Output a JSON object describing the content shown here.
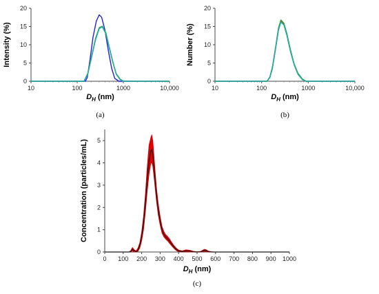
{
  "chart_data": [
    {
      "type": "line",
      "panel": "a",
      "caption": "(a)",
      "ylabel": "Intensity (%)",
      "xlabel_main": "D",
      "xlabel_sub": "H",
      "xlabel_unit": " (nm)",
      "xscale": "log",
      "xlim": [
        10,
        10000
      ],
      "ylim": [
        0,
        20
      ],
      "xticks": [
        10,
        100,
        1000,
        10000
      ],
      "xtick_labels": [
        "10",
        "100",
        "1000",
        "10,000"
      ],
      "yticks": [
        0,
        5,
        10,
        15,
        20
      ],
      "grid": false,
      "series": [
        {
          "color": "#2020e0",
          "x": [
            10,
            150,
            165,
            190,
            220,
            260,
            300,
            340,
            400,
            480,
            560,
            650,
            800,
            10000
          ],
          "y": [
            0,
            0,
            1,
            6,
            12,
            16.5,
            18.2,
            17.5,
            14,
            8,
            3.5,
            0.8,
            0,
            0
          ]
        },
        {
          "color": "#e03030",
          "x": [
            10,
            140,
            170,
            200,
            250,
            300,
            350,
            420,
            500,
            600,
            700,
            850,
            1000,
            10000
          ],
          "y": [
            0,
            0,
            2,
            6,
            11.5,
            14.5,
            15,
            13,
            9,
            5,
            2,
            0.5,
            0,
            0
          ]
        },
        {
          "color": "#30a030",
          "x": [
            10,
            140,
            170,
            200,
            250,
            300,
            350,
            420,
            500,
            600,
            700,
            850,
            1000,
            10000
          ],
          "y": [
            0,
            0,
            2.2,
            6.3,
            11.8,
            14.7,
            15.1,
            13.2,
            9.2,
            5.1,
            2.1,
            0.6,
            0,
            0
          ]
        },
        {
          "color": "#20b0b0",
          "x": [
            10,
            140,
            170,
            200,
            250,
            300,
            350,
            420,
            500,
            600,
            700,
            850,
            1000,
            10000
          ],
          "y": [
            0,
            0,
            1.9,
            6,
            11.4,
            14.4,
            14.9,
            12.9,
            8.9,
            4.9,
            1.9,
            0.4,
            0,
            0
          ]
        }
      ]
    },
    {
      "type": "line",
      "panel": "b",
      "caption": "(b)",
      "ylabel": "Number (%)",
      "xlabel_main": "D",
      "xlabel_sub": "H",
      "xlabel_unit": " (nm)",
      "xscale": "log",
      "xlim": [
        10,
        10000
      ],
      "ylim": [
        0,
        20
      ],
      "xticks": [
        10,
        100,
        1000,
        10000
      ],
      "xtick_labels": [
        "10",
        "100",
        "1000",
        "10,000"
      ],
      "yticks": [
        0,
        5,
        10,
        15,
        20
      ],
      "grid": false,
      "series": [
        {
          "color": "#2020e0",
          "x": [
            10,
            130,
            150,
            170,
            200,
            230,
            260,
            300,
            350,
            420,
            500,
            600,
            750,
            900,
            10000
          ],
          "y": [
            0,
            0,
            1,
            3.5,
            9,
            14,
            16.3,
            15.5,
            12.5,
            8,
            4.5,
            2,
            0.5,
            0,
            0
          ]
        },
        {
          "color": "#e03030",
          "x": [
            10,
            130,
            150,
            170,
            200,
            230,
            260,
            300,
            350,
            420,
            500,
            600,
            750,
            900,
            10000
          ],
          "y": [
            0,
            0,
            1.1,
            3.7,
            9.2,
            14.3,
            16.5,
            15.7,
            12.7,
            8.2,
            4.6,
            2.1,
            0.5,
            0,
            0
          ]
        },
        {
          "color": "#30a030",
          "x": [
            10,
            130,
            150,
            170,
            200,
            230,
            260,
            300,
            350,
            420,
            500,
            600,
            750,
            900,
            10000
          ],
          "y": [
            0,
            0,
            1.2,
            3.9,
            9.5,
            14.6,
            16.8,
            15.9,
            12.9,
            8.4,
            4.7,
            2.2,
            0.6,
            0,
            0
          ]
        },
        {
          "color": "#20b0b0",
          "x": [
            10,
            130,
            150,
            170,
            200,
            230,
            260,
            300,
            350,
            420,
            500,
            600,
            750,
            900,
            10000
          ],
          "y": [
            0,
            0,
            1.0,
            3.6,
            9.1,
            14.1,
            16.2,
            15.4,
            12.4,
            7.9,
            4.4,
            1.9,
            0.4,
            0,
            0
          ]
        }
      ]
    },
    {
      "type": "area",
      "panel": "c",
      "caption": "(c)",
      "ylabel": "Concentration (particles/mL)",
      "xlabel_main": "D",
      "xlabel_sub": "H",
      "xlabel_unit": " (nm)",
      "xscale": "linear",
      "xlim": [
        0,
        1000
      ],
      "ylim": [
        0,
        5.5
      ],
      "xticks": [
        0,
        100,
        200,
        300,
        400,
        500,
        600,
        700,
        800,
        900,
        1000
      ],
      "xtick_labels": [
        "0",
        "100",
        "200",
        "300",
        "400",
        "500",
        "600",
        "700",
        "800",
        "900",
        "1000"
      ],
      "yticks": [
        0,
        1,
        2,
        3,
        4,
        5
      ],
      "grid": false,
      "mean": {
        "color": "#1a1a1a",
        "x": [
          0,
          130,
          140,
          150,
          160,
          170,
          180,
          190,
          200,
          210,
          220,
          230,
          240,
          250,
          255,
          260,
          265,
          270,
          280,
          290,
          300,
          310,
          320,
          330,
          340,
          350,
          360,
          370,
          380,
          390,
          400,
          420,
          440,
          460,
          480,
          500,
          520,
          540,
          550,
          560,
          580,
          600,
          1000
        ],
        "y": [
          0,
          0,
          0.02,
          0.12,
          0.05,
          0.02,
          0.1,
          0.3,
          0.7,
          1.3,
          2.2,
          3.2,
          4.1,
          4.55,
          4.6,
          4.4,
          4.0,
          3.5,
          2.6,
          1.9,
          1.4,
          1.0,
          0.8,
          0.68,
          0.6,
          0.5,
          0.38,
          0.27,
          0.18,
          0.1,
          0.05,
          0.02,
          0.05,
          0.04,
          0.01,
          0,
          0.01,
          0.08,
          0.06,
          0.02,
          0,
          0,
          0
        ]
      },
      "band": {
        "color": "#e00000",
        "upper": [
          0,
          0,
          0.05,
          0.2,
          0.1,
          0.05,
          0.18,
          0.42,
          0.9,
          1.6,
          2.6,
          3.8,
          4.8,
          5.15,
          5.25,
          5.0,
          4.5,
          3.9,
          2.9,
          2.15,
          1.6,
          1.15,
          0.92,
          0.78,
          0.7,
          0.6,
          0.47,
          0.34,
          0.24,
          0.15,
          0.09,
          0.05,
          0.1,
          0.08,
          0.03,
          0.01,
          0.03,
          0.12,
          0.1,
          0.04,
          0.01,
          0,
          0
        ],
        "lower": [
          0,
          0,
          0,
          0.05,
          0,
          0,
          0.03,
          0.18,
          0.5,
          1.0,
          1.8,
          2.7,
          3.5,
          4.0,
          4.0,
          3.85,
          3.5,
          3.1,
          2.3,
          1.65,
          1.2,
          0.85,
          0.68,
          0.58,
          0.5,
          0.4,
          0.3,
          0.2,
          0.12,
          0.05,
          0.02,
          0,
          0.01,
          0,
          0,
          0,
          0,
          0.03,
          0.02,
          0,
          0,
          0,
          0
        ]
      }
    }
  ]
}
